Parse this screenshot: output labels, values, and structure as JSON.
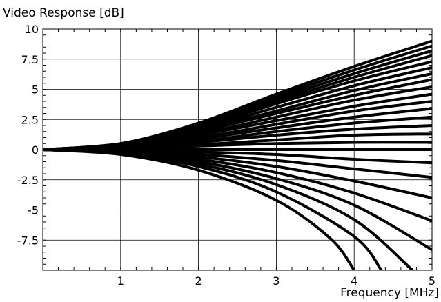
{
  "chart_data": {
    "type": "line",
    "title": "",
    "ylabel": "Video Response [dB]",
    "xlabel": "Frequency [MHz]",
    "xlim": [
      0,
      5
    ],
    "ylim": [
      -10,
      10
    ],
    "xticks": [
      1,
      2,
      3,
      4,
      5
    ],
    "xtick_labels": [
      "1",
      "2",
      "3",
      "4",
      "5"
    ],
    "yticks": [
      10,
      7.5,
      5,
      2.5,
      0,
      -2.5,
      -5,
      -7.5
    ],
    "ytick_labels": [
      "10",
      "7.5",
      "5",
      "2.5",
      "0",
      "-2.5",
      "-5",
      "-7.5"
    ],
    "grid": true,
    "line_color": "#000000",
    "family_description": "family of response curves, each flat at 0 dB below ~0.3 MHz, then diverging; end values at 5 MHz listed below",
    "series": [
      {
        "x": [
          0,
          1,
          2,
          3,
          4,
          5
        ],
        "values": [
          0,
          0.5,
          2.2,
          4.6,
          6.9,
          9.0
        ]
      },
      {
        "x": [
          0,
          1,
          2,
          3,
          4,
          5
        ],
        "values": [
          0,
          0.5,
          2.1,
          4.4,
          6.6,
          8.6
        ]
      },
      {
        "x": [
          0,
          1,
          2,
          3,
          4,
          5
        ],
        "values": [
          0,
          0.5,
          2.0,
          4.2,
          6.3,
          8.2
        ]
      },
      {
        "x": [
          0,
          1,
          2,
          3,
          4,
          5
        ],
        "values": [
          0,
          0.5,
          1.9,
          4.0,
          6.0,
          7.8
        ]
      },
      {
        "x": [
          0,
          1,
          2,
          3,
          4,
          5
        ],
        "values": [
          0,
          0.45,
          1.8,
          3.8,
          5.7,
          7.3
        ]
      },
      {
        "x": [
          0,
          1,
          2,
          3,
          4,
          5
        ],
        "values": [
          0,
          0.45,
          1.7,
          3.5,
          5.3,
          6.8
        ]
      },
      {
        "x": [
          0,
          1,
          2,
          3,
          4,
          5
        ],
        "values": [
          0,
          0.4,
          1.6,
          3.2,
          4.9,
          6.3
        ]
      },
      {
        "x": [
          0,
          1,
          2,
          3,
          4,
          5
        ],
        "values": [
          0,
          0.4,
          1.5,
          3.0,
          4.5,
          5.8
        ]
      },
      {
        "x": [
          0,
          1,
          2,
          3,
          4,
          5
        ],
        "values": [
          0,
          0.35,
          1.3,
          2.7,
          4.1,
          5.2
        ]
      },
      {
        "x": [
          0,
          1,
          2,
          3,
          4,
          5
        ],
        "values": [
          0,
          0.3,
          1.2,
          2.4,
          3.6,
          4.6
        ]
      },
      {
        "x": [
          0,
          1,
          2,
          3,
          4,
          5
        ],
        "values": [
          0,
          0.3,
          1.0,
          2.1,
          3.2,
          4.0
        ]
      },
      {
        "x": [
          0,
          1,
          2,
          3,
          4,
          5
        ],
        "values": [
          0,
          0.25,
          0.9,
          1.8,
          2.7,
          3.4
        ]
      },
      {
        "x": [
          0,
          1,
          2,
          3,
          4,
          5
        ],
        "values": [
          0,
          0.2,
          0.7,
          1.5,
          2.2,
          2.7
        ]
      },
      {
        "x": [
          0,
          1,
          2,
          3,
          4,
          5
        ],
        "values": [
          0,
          0.15,
          0.6,
          1.2,
          1.7,
          2.0
        ]
      },
      {
        "x": [
          0,
          1,
          2,
          3,
          4,
          5
        ],
        "values": [
          0,
          0.1,
          0.4,
          0.8,
          1.2,
          1.3
        ]
      },
      {
        "x": [
          0,
          1,
          2,
          3,
          4,
          5
        ],
        "values": [
          0,
          0.05,
          0.3,
          0.5,
          0.6,
          0.6
        ]
      },
      {
        "x": [
          0,
          1,
          2,
          3,
          4,
          5
        ],
        "values": [
          0,
          0,
          0,
          0,
          0,
          0
        ]
      },
      {
        "x": [
          0,
          1,
          2,
          3,
          4,
          5
        ],
        "values": [
          0,
          -0.05,
          -0.2,
          -0.4,
          -0.8,
          -1.1
        ]
      },
      {
        "x": [
          0,
          1,
          2,
          3,
          4,
          5
        ],
        "values": [
          0,
          -0.1,
          -0.4,
          -0.9,
          -1.6,
          -2.3
        ]
      },
      {
        "x": [
          0,
          1,
          2,
          3,
          4,
          5
        ],
        "values": [
          0,
          -0.15,
          -0.6,
          -1.4,
          -2.6,
          -4.0
        ]
      },
      {
        "x": [
          0,
          1,
          2,
          3,
          4,
          5
        ],
        "values": [
          0,
          -0.2,
          -0.8,
          -1.9,
          -3.6,
          -5.9
        ]
      },
      {
        "x": [
          0,
          1,
          2,
          3,
          4,
          5
        ],
        "values": [
          0,
          -0.25,
          -1.0,
          -2.4,
          -4.6,
          -8.3
        ]
      },
      {
        "x": [
          0,
          1,
          2,
          3,
          4,
          4.75
        ],
        "values": [
          0,
          -0.3,
          -1.2,
          -2.9,
          -5.8,
          -10.0
        ]
      },
      {
        "x": [
          0,
          1,
          2,
          3,
          4,
          4.35
        ],
        "values": [
          0,
          -0.35,
          -1.4,
          -3.5,
          -7.2,
          -10.0
        ]
      },
      {
        "x": [
          0,
          1,
          2,
          3,
          3.7,
          4.0
        ],
        "values": [
          0,
          -0.4,
          -1.7,
          -4.2,
          -7.4,
          -10.0
        ]
      }
    ]
  }
}
